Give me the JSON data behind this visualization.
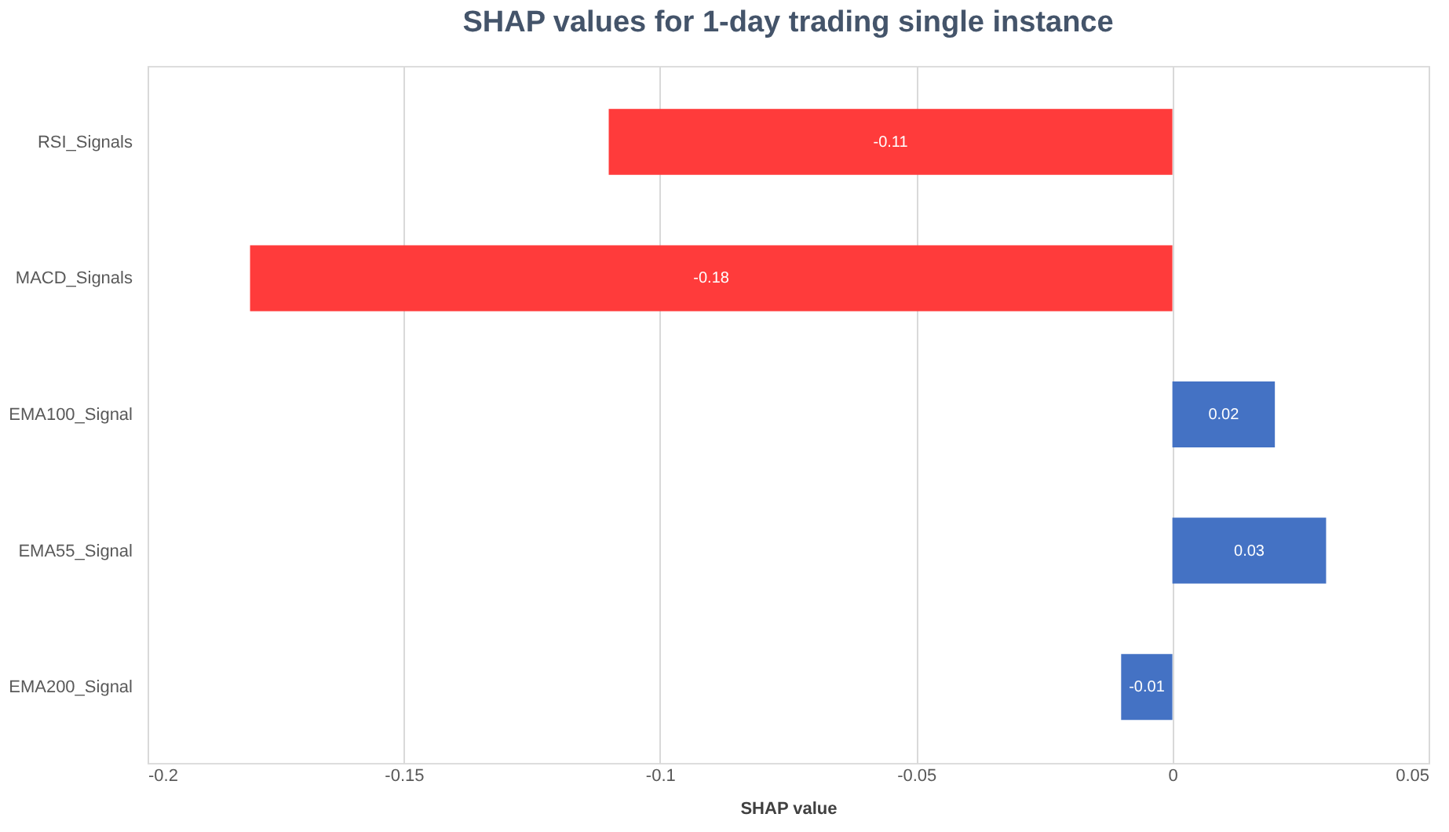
{
  "chart_data": {
    "type": "bar",
    "orientation": "horizontal",
    "title": "SHAP values for 1-day trading single instance",
    "xlabel": "SHAP value",
    "categories": [
      "RSI_Signals",
      "MACD_Signals",
      "EMA100_Signal",
      "EMA55_Signal",
      "EMA200_Signal"
    ],
    "values": [
      -0.11,
      -0.18,
      0.02,
      0.03,
      -0.01
    ],
    "colors": [
      "#ff3b3b",
      "#ff3b3b",
      "#4472c4",
      "#4472c4",
      "#4472c4"
    ],
    "xlim": [
      -0.2,
      0.05
    ],
    "xticks": [
      -0.2,
      -0.15,
      -0.1,
      -0.05,
      0,
      0.05
    ],
    "grid": "x",
    "data_labels": true
  }
}
